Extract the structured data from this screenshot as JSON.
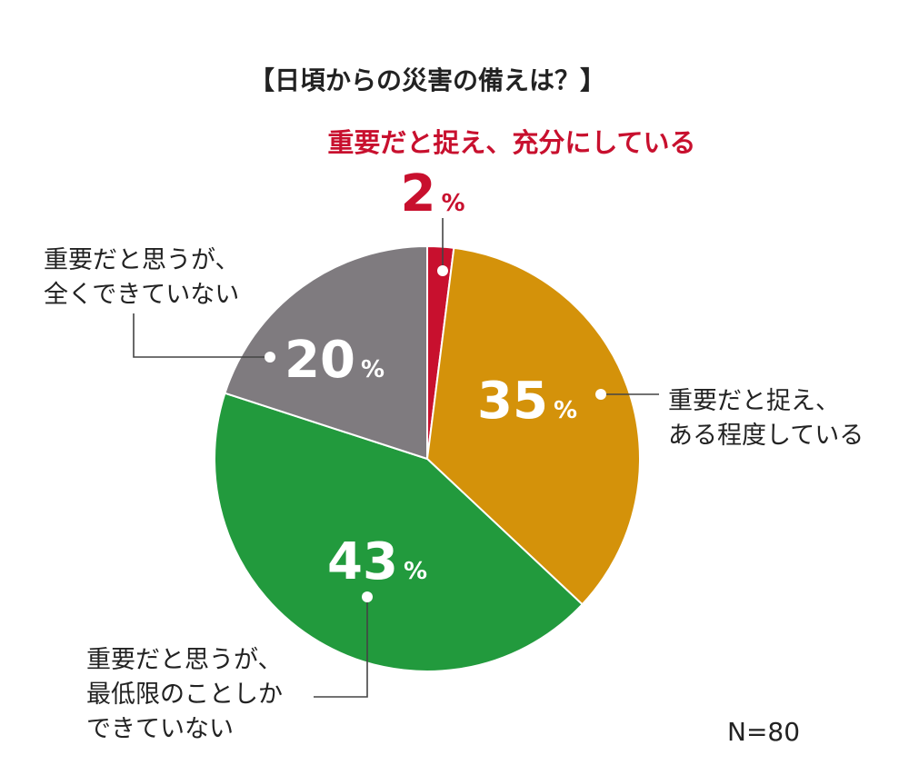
{
  "chart_data": {
    "type": "pie",
    "title": "【日頃からの災害の備えは？】",
    "note": "N=80",
    "unit": "%",
    "slices": [
      {
        "label_lines": [
          "重要だと捉え、充分にしている"
        ],
        "value": 2,
        "color": "#c8102e"
      },
      {
        "label_lines": [
          "重要だと捉え、",
          "ある程度している"
        ],
        "value": 35,
        "color": "#d4920a"
      },
      {
        "label_lines": [
          "重要だと思うが、",
          "最低限のことしか",
          "できていない"
        ],
        "value": 43,
        "color": "#229a3d"
      },
      {
        "label_lines": [
          "重要だと思うが、",
          "全くできていない"
        ],
        "value": 20,
        "color": "#7f7b7f"
      }
    ]
  }
}
